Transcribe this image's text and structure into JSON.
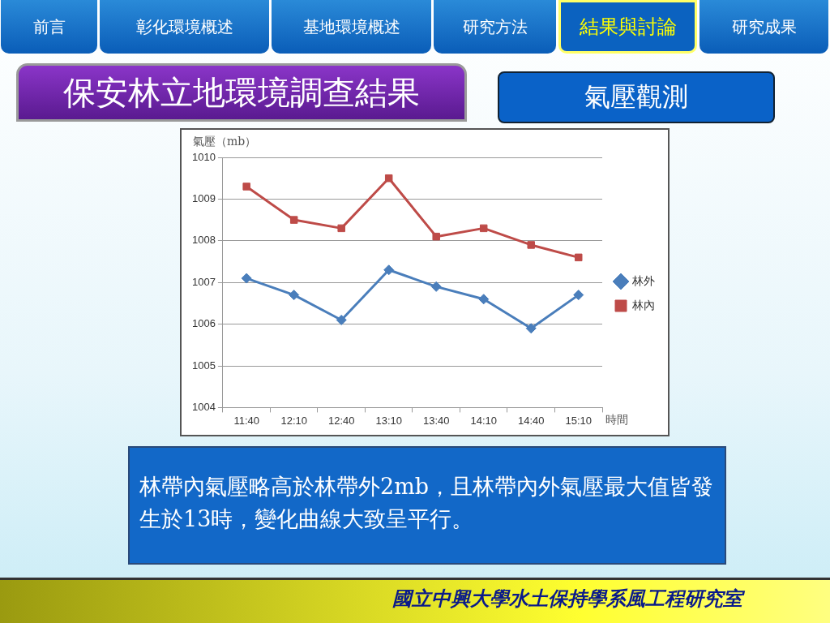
{
  "chart_data": {
    "type": "line",
    "title": "保安林立地環境調查結果",
    "subtitle": "氣壓觀測",
    "xlabel": "時間",
    "ylabel": "氣壓（mb）",
    "categories": [
      "11:40",
      "12:10",
      "12:40",
      "13:10",
      "13:40",
      "14:10",
      "14:40",
      "15:10"
    ],
    "series": [
      {
        "name": "林外",
        "color": "#4a7ebb",
        "marker": "diamond",
        "values": [
          1007.1,
          1006.7,
          1006.1,
          1007.3,
          1006.9,
          1006.6,
          1005.9,
          1006.7
        ]
      },
      {
        "name": "林內",
        "color": "#be4b48",
        "marker": "square",
        "values": [
          1009.3,
          1008.5,
          1008.3,
          1009.5,
          1008.1,
          1008.3,
          1007.9,
          1007.6
        ]
      }
    ],
    "ylim": [
      1004,
      1010
    ],
    "yticks": [
      1004,
      1005,
      1006,
      1007,
      1008,
      1009,
      1010
    ],
    "grid": "y",
    "legend": "right",
    "line_style": "solid",
    "annotations": [
      "前言",
      "彰化環境概述",
      "基地環境概述",
      "研究方法",
      "結果與討論",
      "研究成果",
      "林帶內氣壓略高於林帶外2mb，且林帶內外氣壓最大值皆發生於13時，變化曲線大致呈平行。",
      "國立中興大學水土保持學系風工程研究室"
    ]
  }
}
